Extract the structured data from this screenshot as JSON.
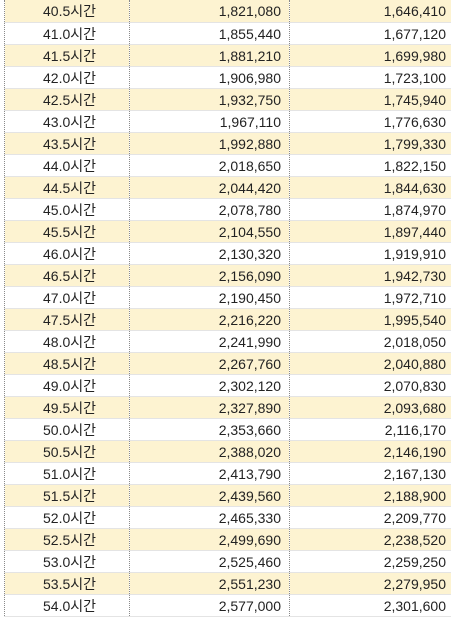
{
  "table": {
    "rows": [
      {
        "hours": "40.5시간",
        "a": "1,821,080",
        "b": "1,646,410"
      },
      {
        "hours": "41.0시간",
        "a": "1,855,440",
        "b": "1,677,120"
      },
      {
        "hours": "41.5시간",
        "a": "1,881,210",
        "b": "1,699,980"
      },
      {
        "hours": "42.0시간",
        "a": "1,906,980",
        "b": "1,723,100"
      },
      {
        "hours": "42.5시간",
        "a": "1,932,750",
        "b": "1,745,940"
      },
      {
        "hours": "43.0시간",
        "a": "1,967,110",
        "b": "1,776,630"
      },
      {
        "hours": "43.5시간",
        "a": "1,992,880",
        "b": "1,799,330"
      },
      {
        "hours": "44.0시간",
        "a": "2,018,650",
        "b": "1,822,150"
      },
      {
        "hours": "44.5시간",
        "a": "2,044,420",
        "b": "1,844,630"
      },
      {
        "hours": "45.0시간",
        "a": "2,078,780",
        "b": "1,874,970"
      },
      {
        "hours": "45.5시간",
        "a": "2,104,550",
        "b": "1,897,440"
      },
      {
        "hours": "46.0시간",
        "a": "2,130,320",
        "b": "1,919,910"
      },
      {
        "hours": "46.5시간",
        "a": "2,156,090",
        "b": "1,942,730"
      },
      {
        "hours": "47.0시간",
        "a": "2,190,450",
        "b": "1,972,710"
      },
      {
        "hours": "47.5시간",
        "a": "2,216,220",
        "b": "1,995,540"
      },
      {
        "hours": "48.0시간",
        "a": "2,241,990",
        "b": "2,018,050"
      },
      {
        "hours": "48.5시간",
        "a": "2,267,760",
        "b": "2,040,880"
      },
      {
        "hours": "49.0시간",
        "a": "2,302,120",
        "b": "2,070,830"
      },
      {
        "hours": "49.5시간",
        "a": "2,327,890",
        "b": "2,093,680"
      },
      {
        "hours": "50.0시간",
        "a": "2,353,660",
        "b": "2,116,170"
      },
      {
        "hours": "50.5시간",
        "a": "2,388,020",
        "b": "2,146,190"
      },
      {
        "hours": "51.0시간",
        "a": "2,413,790",
        "b": "2,167,130"
      },
      {
        "hours": "51.5시간",
        "a": "2,439,560",
        "b": "2,188,900"
      },
      {
        "hours": "52.0시간",
        "a": "2,465,330",
        "b": "2,209,770"
      },
      {
        "hours": "52.5시간",
        "a": "2,499,690",
        "b": "2,238,520"
      },
      {
        "hours": "53.0시간",
        "a": "2,525,460",
        "b": "2,259,250"
      },
      {
        "hours": "53.5시간",
        "a": "2,551,230",
        "b": "2,279,950"
      },
      {
        "hours": "54.0시간",
        "a": "2,577,000",
        "b": "2,301,600"
      }
    ]
  },
  "colors": {
    "alt_row": "#fdf3d1",
    "text": "#222222",
    "grid": "#e4e4e4"
  }
}
